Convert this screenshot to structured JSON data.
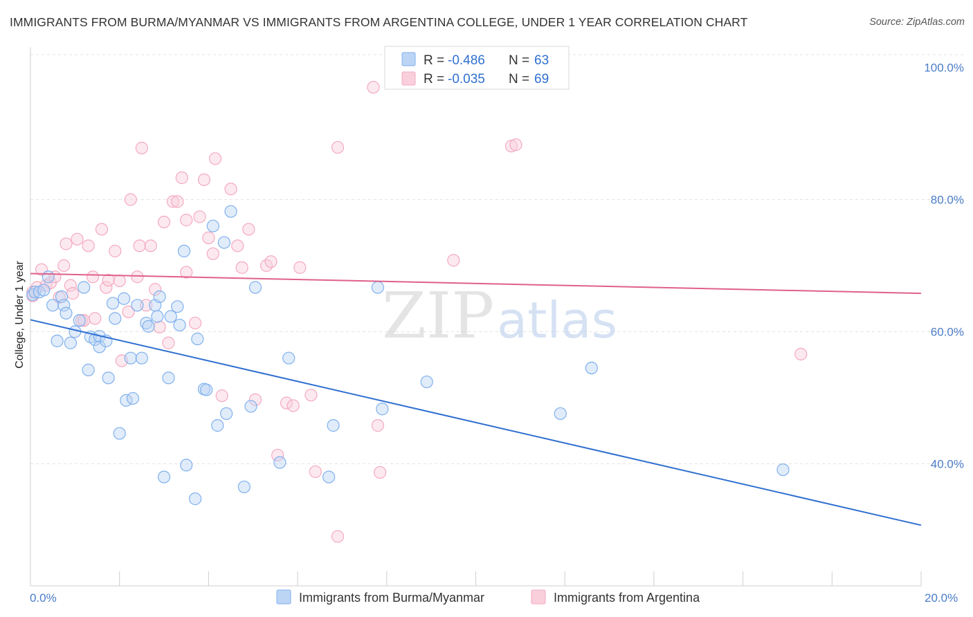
{
  "header": {
    "title": "IMMIGRANTS FROM BURMA/MYANMAR VS IMMIGRANTS FROM ARGENTINA COLLEGE, UNDER 1 YEAR CORRELATION CHART",
    "source": "Source: ZipAtlas.com"
  },
  "watermark": {
    "zip": "ZIP",
    "atlas": "atlas"
  },
  "legend_top": {
    "r_label": "R =",
    "n_label": "N =",
    "rows": [
      {
        "r": "-0.486",
        "n": "63",
        "color": "#7fb0ee"
      },
      {
        "r": "-0.035",
        "n": "69",
        "color": "#f4a9c0"
      }
    ]
  },
  "legend_bottom": [
    {
      "label": "Immigrants from Burma/Myanmar",
      "color": "#7fb0ee"
    },
    {
      "label": "Immigrants from Argentina",
      "color": "#f4a9c0"
    }
  ],
  "chart_data": {
    "type": "scatter",
    "title": "IMMIGRANTS FROM BURMA/MYANMAR VS IMMIGRANTS FROM ARGENTINA COLLEGE, UNDER 1 YEAR CORRELATION CHART",
    "xlabel": "",
    "ylabel": "College, Under 1 year",
    "xlim": [
      0,
      20
    ],
    "ylim": [
      21,
      104
    ],
    "x_tick_labels": [
      "0.0%",
      "20.0%"
    ],
    "y_ticks": [
      40,
      60,
      80,
      100
    ],
    "y_tick_labels": [
      "40.0%",
      "60.0%",
      "80.0%",
      "100.0%"
    ],
    "grid": true,
    "series": [
      {
        "name": "Immigrants from Burma/Myanmar",
        "color": "#7fb0ee",
        "line_color": "#2f6fd0",
        "trend": {
          "x": [
            0,
            20
          ],
          "y": [
            61.8,
            30.7
          ]
        },
        "points": [
          [
            0.05,
            65.6
          ],
          [
            0.1,
            66.0
          ],
          [
            0.2,
            66.0
          ],
          [
            0.3,
            66.3
          ],
          [
            0.4,
            68.3
          ],
          [
            0.5,
            64.0
          ],
          [
            0.6,
            58.6
          ],
          [
            0.7,
            65.3
          ],
          [
            0.75,
            64.0
          ],
          [
            0.8,
            62.8
          ],
          [
            0.9,
            58.3
          ],
          [
            1.0,
            60.0
          ],
          [
            1.1,
            61.7
          ],
          [
            1.2,
            66.7
          ],
          [
            1.3,
            54.2
          ],
          [
            1.35,
            59.2
          ],
          [
            1.45,
            58.8
          ],
          [
            1.55,
            59.3
          ],
          [
            1.55,
            57.7
          ],
          [
            1.7,
            58.6
          ],
          [
            1.75,
            53.0
          ],
          [
            1.85,
            64.3
          ],
          [
            1.9,
            62.0
          ],
          [
            2.0,
            44.6
          ],
          [
            2.1,
            65.0
          ],
          [
            2.15,
            49.6
          ],
          [
            2.25,
            56.0
          ],
          [
            2.3,
            49.9
          ],
          [
            2.4,
            64.0
          ],
          [
            2.5,
            56.0
          ],
          [
            2.6,
            61.3
          ],
          [
            2.65,
            60.8
          ],
          [
            2.8,
            64.0
          ],
          [
            2.85,
            62.3
          ],
          [
            2.9,
            65.3
          ],
          [
            3.0,
            38.0
          ],
          [
            3.1,
            53.0
          ],
          [
            3.15,
            62.3
          ],
          [
            3.3,
            63.8
          ],
          [
            3.35,
            61.0
          ],
          [
            3.45,
            72.2
          ],
          [
            3.5,
            39.8
          ],
          [
            3.7,
            34.7
          ],
          [
            3.75,
            58.9
          ],
          [
            3.9,
            51.3
          ],
          [
            3.95,
            51.2
          ],
          [
            4.1,
            76.0
          ],
          [
            4.2,
            45.8
          ],
          [
            4.35,
            73.5
          ],
          [
            4.4,
            47.6
          ],
          [
            4.5,
            78.2
          ],
          [
            4.8,
            36.5
          ],
          [
            4.95,
            48.7
          ],
          [
            5.05,
            66.7
          ],
          [
            5.6,
            40.2
          ],
          [
            5.8,
            56.0
          ],
          [
            6.7,
            38.0
          ],
          [
            6.8,
            45.8
          ],
          [
            7.8,
            66.7
          ],
          [
            7.9,
            48.3
          ],
          [
            8.9,
            52.4
          ],
          [
            11.9,
            47.6
          ],
          [
            12.6,
            54.5
          ],
          [
            16.9,
            39.1
          ]
        ]
      },
      {
        "name": "Immigrants from Argentina",
        "color": "#f4a9c0",
        "line_color": "#e0608a",
        "trend": {
          "x": [
            0,
            20
          ],
          "y": [
            68.8,
            65.8
          ]
        },
        "points": [
          [
            0.05,
            66.0
          ],
          [
            0.15,
            66.7
          ],
          [
            0.25,
            69.4
          ],
          [
            0.35,
            67.0
          ],
          [
            0.45,
            67.4
          ],
          [
            0.55,
            68.3
          ],
          [
            0.65,
            65.2
          ],
          [
            0.75,
            70.0
          ],
          [
            0.8,
            73.3
          ],
          [
            0.9,
            67.0
          ],
          [
            0.95,
            65.8
          ],
          [
            1.05,
            74.0
          ],
          [
            1.15,
            61.7
          ],
          [
            1.2,
            61.7
          ],
          [
            1.3,
            73.0
          ],
          [
            1.4,
            68.3
          ],
          [
            1.45,
            62.0
          ],
          [
            1.6,
            75.5
          ],
          [
            1.7,
            66.7
          ],
          [
            1.75,
            67.8
          ],
          [
            1.9,
            72.2
          ],
          [
            2.0,
            67.7
          ],
          [
            2.05,
            55.6
          ],
          [
            2.2,
            63.0
          ],
          [
            2.25,
            80.0
          ],
          [
            2.4,
            68.3
          ],
          [
            2.45,
            73.0
          ],
          [
            2.5,
            87.8
          ],
          [
            2.6,
            64.0
          ],
          [
            2.7,
            73.0
          ],
          [
            2.8,
            66.4
          ],
          [
            2.9,
            60.7
          ],
          [
            3.0,
            76.6
          ],
          [
            3.1,
            58.3
          ],
          [
            3.2,
            79.7
          ],
          [
            3.3,
            79.7
          ],
          [
            3.4,
            83.3
          ],
          [
            3.5,
            69.0
          ],
          [
            3.5,
            76.9
          ],
          [
            3.7,
            61.3
          ],
          [
            3.8,
            77.4
          ],
          [
            3.9,
            83.0
          ],
          [
            4.0,
            74.2
          ],
          [
            4.1,
            71.8
          ],
          [
            4.15,
            86.2
          ],
          [
            4.3,
            50.3
          ],
          [
            4.5,
            81.6
          ],
          [
            4.65,
            73.0
          ],
          [
            4.75,
            69.7
          ],
          [
            4.9,
            75.5
          ],
          [
            5.05,
            49.7
          ],
          [
            5.3,
            70.0
          ],
          [
            5.4,
            70.6
          ],
          [
            5.55,
            41.3
          ],
          [
            5.75,
            49.2
          ],
          [
            5.9,
            48.8
          ],
          [
            6.05,
            69.7
          ],
          [
            6.3,
            50.4
          ],
          [
            6.4,
            38.8
          ],
          [
            6.9,
            87.9
          ],
          [
            6.9,
            29.0
          ],
          [
            7.7,
            97.0
          ],
          [
            7.8,
            45.8
          ],
          [
            7.85,
            38.7
          ],
          [
            9.5,
            70.8
          ],
          [
            10.8,
            88.1
          ],
          [
            10.9,
            88.3
          ],
          [
            17.3,
            56.6
          ],
          [
            0.05,
            65.4
          ]
        ]
      }
    ]
  }
}
